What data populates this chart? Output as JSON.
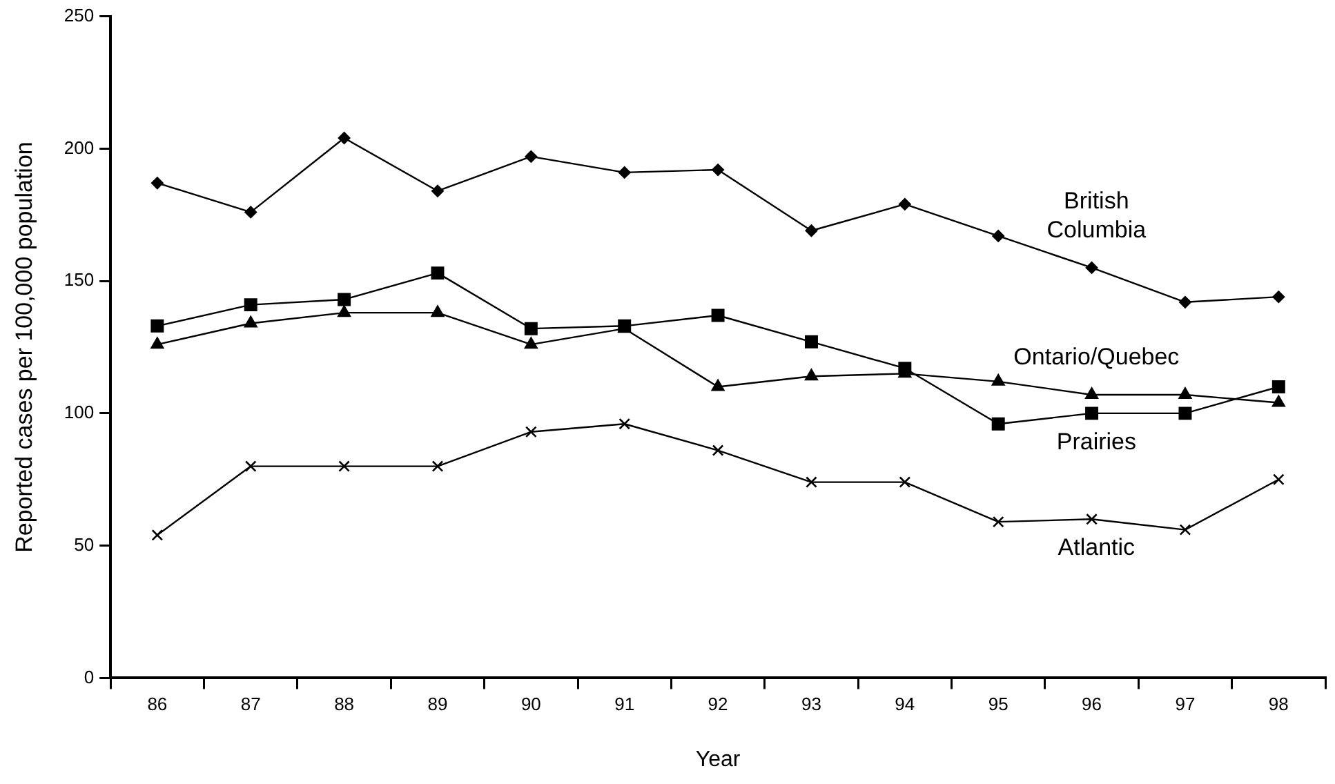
{
  "chart_data": {
    "type": "line",
    "xlabel": "Year",
    "ylabel": "Reported cases per 100,000 population",
    "categories": [
      "86",
      "87",
      "88",
      "89",
      "90",
      "91",
      "92",
      "93",
      "94",
      "95",
      "96",
      "97",
      "98"
    ],
    "ylim": [
      0,
      250
    ],
    "yticks": [
      0,
      50,
      100,
      150,
      200,
      250
    ],
    "grid": false,
    "legend": false,
    "line_style": "solid",
    "series": [
      {
        "name": "British Columbia",
        "color": "#000000",
        "marker": "diamond",
        "values": [
          187,
          176,
          204,
          184,
          197,
          191,
          192,
          169,
          179,
          167,
          155,
          142,
          144
        ]
      },
      {
        "name": "Ontario/Quebec",
        "color": "#000000",
        "marker": "triangle",
        "values": [
          126,
          134,
          138,
          138,
          126,
          132,
          110,
          114,
          115,
          112,
          107,
          107,
          104
        ]
      },
      {
        "name": "Prairies",
        "color": "#000000",
        "marker": "square",
        "values": [
          133,
          141,
          143,
          153,
          132,
          133,
          137,
          127,
          117,
          96,
          100,
          100,
          110
        ]
      },
      {
        "name": "Atlantic",
        "color": "#000000",
        "marker": "cross",
        "values": [
          54,
          80,
          80,
          80,
          93,
          96,
          86,
          74,
          74,
          59,
          60,
          56,
          75
        ]
      }
    ]
  }
}
